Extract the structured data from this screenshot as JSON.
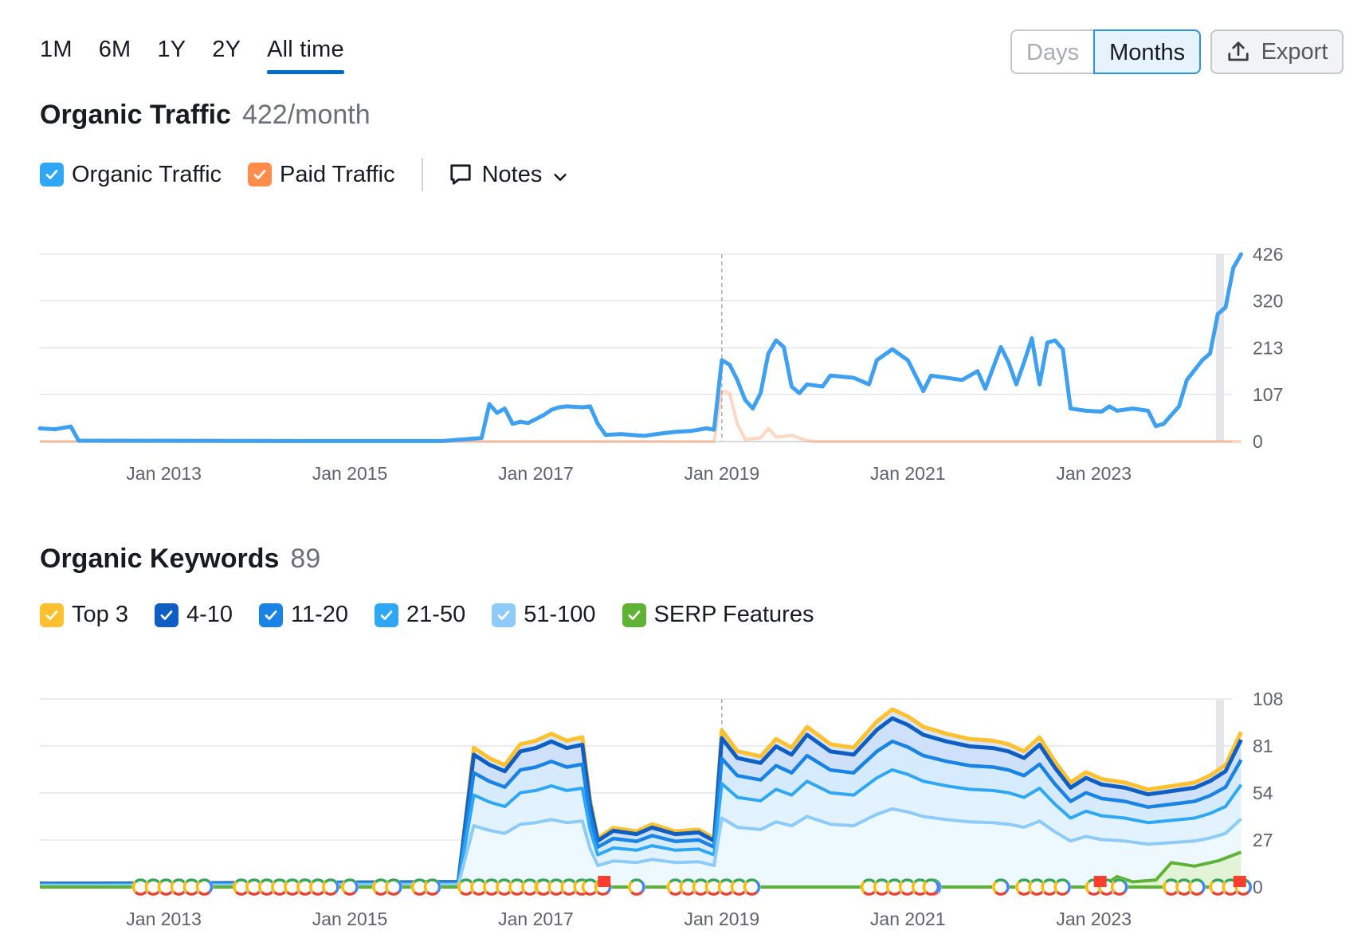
{
  "period_tabs": [
    "1M",
    "6M",
    "1Y",
    "2Y",
    "All time"
  ],
  "active_period": "All time",
  "granularity": {
    "days": "Days",
    "months": "Months",
    "selected": "Months"
  },
  "export_label": "Export",
  "traffic": {
    "title": "Organic Traffic",
    "value": "422/month",
    "legend": {
      "organic": "Organic Traffic",
      "paid": "Paid Traffic",
      "notes": "Notes"
    }
  },
  "keywords": {
    "title": "Organic Keywords",
    "value": "89",
    "legend": {
      "top3": "Top 3",
      "r4_10": "4-10",
      "r11_20": "11-20",
      "r21_50": "21-50",
      "r51_100": "51-100",
      "serp": "SERP Features"
    }
  },
  "colors": {
    "organic": "#3ea0f0",
    "paid": "#ff8c4b",
    "top3": "#ffc02e",
    "r4_10": "#0e5ec4",
    "r11_20": "#1a83e6",
    "r21_50": "#2ea8f6",
    "r51_100": "#8dcbfa",
    "serp": "#5fb334",
    "accent": "#006dca"
  },
  "chart_data": [
    {
      "type": "line",
      "title": "Organic Traffic",
      "x_ticks": [
        "Jan 2013",
        "Jan 2015",
        "Jan 2017",
        "Jan 2019",
        "Jan 2021",
        "Jan 2023"
      ],
      "y_ticks": [
        "0",
        "107",
        "213",
        "320",
        "426"
      ],
      "ylim": [
        0,
        426
      ],
      "x_range": [
        "2011-09",
        "2024-06"
      ],
      "grid": true,
      "series": [
        {
          "name": "Organic Traffic",
          "points": [
            [
              "2011-09",
              30
            ],
            [
              "2011-11",
              28
            ],
            [
              "2012-01",
              34
            ],
            [
              "2012-02",
              2
            ],
            [
              "2014-06",
              1
            ],
            [
              "2016-01",
              1
            ],
            [
              "2016-03",
              4
            ],
            [
              "2016-06",
              8
            ],
            [
              "2016-07",
              85
            ],
            [
              "2016-08",
              65
            ],
            [
              "2016-09",
              75
            ],
            [
              "2016-10",
              40
            ],
            [
              "2016-11",
              45
            ],
            [
              "2016-12",
              42
            ],
            [
              "2017-02",
              60
            ],
            [
              "2017-03",
              72
            ],
            [
              "2017-04",
              78
            ],
            [
              "2017-05",
              80
            ],
            [
              "2017-07",
              78
            ],
            [
              "2017-08",
              80
            ],
            [
              "2017-09",
              40
            ],
            [
              "2017-10",
              15
            ],
            [
              "2017-12",
              17
            ],
            [
              "2018-02",
              14
            ],
            [
              "2018-03",
              13
            ],
            [
              "2018-05",
              18
            ],
            [
              "2018-07",
              22
            ],
            [
              "2018-09",
              24
            ],
            [
              "2018-11",
              30
            ],
            [
              "2018-12",
              27
            ],
            [
              "2019-01",
              185
            ],
            [
              "2019-02",
              175
            ],
            [
              "2019-03",
              140
            ],
            [
              "2019-04",
              95
            ],
            [
              "2019-05",
              75
            ],
            [
              "2019-06",
              110
            ],
            [
              "2019-07",
              200
            ],
            [
              "2019-08",
              230
            ],
            [
              "2019-09",
              215
            ],
            [
              "2019-10",
              125
            ],
            [
              "2019-11",
              110
            ],
            [
              "2019-12",
              130
            ],
            [
              "2020-02",
              125
            ],
            [
              "2020-03",
              150
            ],
            [
              "2020-06",
              145
            ],
            [
              "2020-08",
              130
            ],
            [
              "2020-09",
              185
            ],
            [
              "2020-11",
              210
            ],
            [
              "2021-01",
              185
            ],
            [
              "2021-03",
              115
            ],
            [
              "2021-04",
              150
            ],
            [
              "2021-06",
              145
            ],
            [
              "2021-08",
              140
            ],
            [
              "2021-10",
              160
            ],
            [
              "2021-11",
              120
            ],
            [
              "2022-01",
              215
            ],
            [
              "2022-02",
              180
            ],
            [
              "2022-03",
              130
            ],
            [
              "2022-04",
              180
            ],
            [
              "2022-05",
              235
            ],
            [
              "2022-06",
              130
            ],
            [
              "2022-07",
              225
            ],
            [
              "2022-08",
              230
            ],
            [
              "2022-09",
              210
            ],
            [
              "2022-10",
              75
            ],
            [
              "2022-12",
              70
            ],
            [
              "2023-02",
              68
            ],
            [
              "2023-03",
              80
            ],
            [
              "2023-04",
              70
            ],
            [
              "2023-06",
              75
            ],
            [
              "2023-08",
              70
            ],
            [
              "2023-09",
              35
            ],
            [
              "2023-10",
              40
            ],
            [
              "2023-12",
              80
            ],
            [
              "2024-01",
              140
            ],
            [
              "2024-03",
              185
            ],
            [
              "2024-04",
              200
            ],
            [
              "2024-05",
              290
            ],
            [
              "2024-06",
              305
            ],
            [
              "2024-07",
              395
            ],
            [
              "2024-08",
              426
            ]
          ]
        },
        {
          "name": "Paid Traffic",
          "points": [
            [
              "2011-09",
              0
            ],
            [
              "2018-12",
              0
            ],
            [
              "2019-01",
              115
            ],
            [
              "2019-02",
              110
            ],
            [
              "2019-03",
              40
            ],
            [
              "2019-04",
              5
            ],
            [
              "2019-06",
              8
            ],
            [
              "2019-07",
              30
            ],
            [
              "2019-08",
              10
            ],
            [
              "2019-10",
              14
            ],
            [
              "2019-12",
              2
            ],
            [
              "2020-01",
              0
            ],
            [
              "2024-08",
              0
            ]
          ]
        }
      ]
    },
    {
      "type": "area",
      "title": "Organic Keywords",
      "x_ticks": [
        "Jan 2013",
        "Jan 2015",
        "Jan 2017",
        "Jan 2019",
        "Jan 2021",
        "Jan 2023"
      ],
      "y_ticks": [
        "0",
        "27",
        "54",
        "81",
        "108"
      ],
      "ylim": [
        0,
        108
      ],
      "x_range": [
        "2011-09",
        "2024-06"
      ],
      "grid": true,
      "series": [
        {
          "name": "Top 3",
          "points": [
            [
              "2011-09",
              2
            ],
            [
              "2012-05",
              2
            ],
            [
              "2016-03",
              3
            ],
            [
              "2016-05",
              80
            ],
            [
              "2016-07",
              74
            ],
            [
              "2016-09",
              70
            ],
            [
              "2016-11",
              82
            ],
            [
              "2017-01",
              84
            ],
            [
              "2017-03",
              88
            ],
            [
              "2017-05",
              84
            ],
            [
              "2017-07",
              86
            ],
            [
              "2017-08",
              50
            ],
            [
              "2017-09",
              28
            ],
            [
              "2017-11",
              34
            ],
            [
              "2018-02",
              32
            ],
            [
              "2018-04",
              36
            ],
            [
              "2018-07",
              32
            ],
            [
              "2018-10",
              33
            ],
            [
              "2018-12",
              28
            ],
            [
              "2019-01",
              90
            ],
            [
              "2019-03",
              78
            ],
            [
              "2019-06",
              75
            ],
            [
              "2019-08",
              85
            ],
            [
              "2019-10",
              80
            ],
            [
              "2019-12",
              92
            ],
            [
              "2020-03",
              82
            ],
            [
              "2020-06",
              80
            ],
            [
              "2020-09",
              95
            ],
            [
              "2020-11",
              102
            ],
            [
              "2021-01",
              98
            ],
            [
              "2021-03",
              92
            ],
            [
              "2021-06",
              88
            ],
            [
              "2021-09",
              85
            ],
            [
              "2021-12",
              84
            ],
            [
              "2022-02",
              82
            ],
            [
              "2022-04",
              78
            ],
            [
              "2022-06",
              86
            ],
            [
              "2022-08",
              72
            ],
            [
              "2022-10",
              60
            ],
            [
              "2022-12",
              66
            ],
            [
              "2023-02",
              62
            ],
            [
              "2023-05",
              60
            ],
            [
              "2023-08",
              56
            ],
            [
              "2023-11",
              58
            ],
            [
              "2024-02",
              60
            ],
            [
              "2024-04",
              64
            ],
            [
              "2024-06",
              70
            ],
            [
              "2024-08",
              89
            ]
          ]
        },
        {
          "name": "SERP Features",
          "points": [
            [
              "2011-09",
              0
            ],
            [
              "2023-02",
              0
            ],
            [
              "2023-04",
              6
            ],
            [
              "2023-06",
              3
            ],
            [
              "2023-09",
              4
            ],
            [
              "2023-11",
              14
            ],
            [
              "2024-02",
              12
            ],
            [
              "2024-05",
              15
            ],
            [
              "2024-08",
              20
            ]
          ]
        }
      ]
    }
  ]
}
